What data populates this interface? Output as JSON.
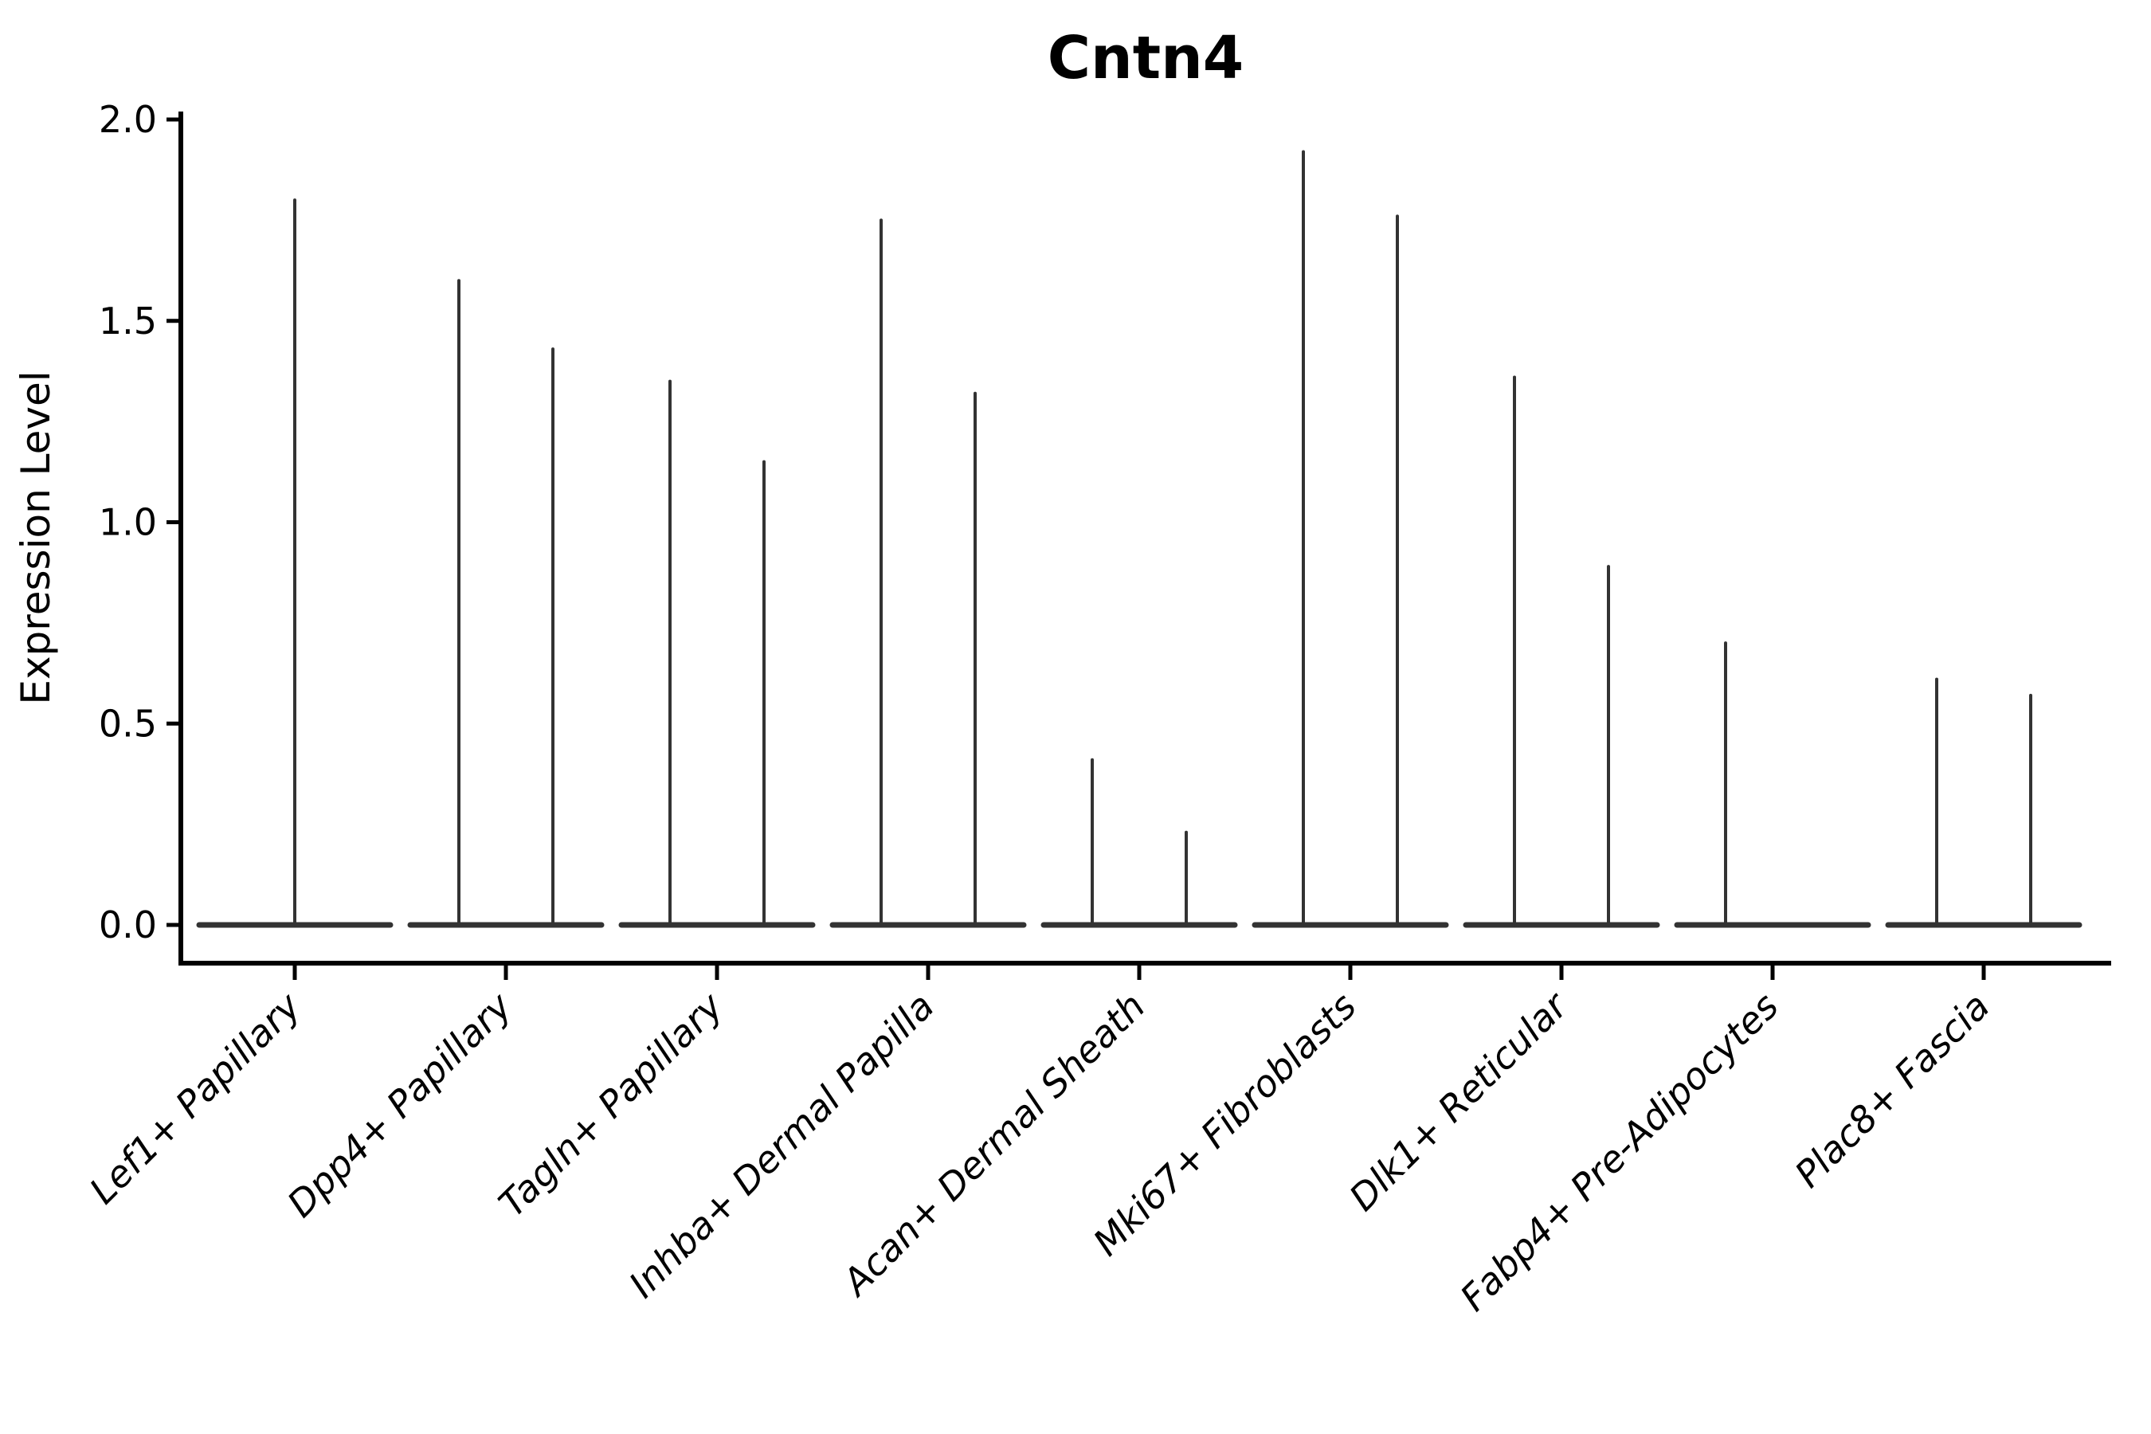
{
  "chart_data": {
    "type": "violin",
    "title": "Cntn4",
    "ylabel": "Expression Level",
    "xlabel": "",
    "ylim": [
      0.0,
      2.0
    ],
    "yticks": [
      0.0,
      0.5,
      1.0,
      1.5,
      2.0
    ],
    "ytick_labels": [
      "0.0",
      "0.5",
      "1.0",
      "1.5",
      "2.0"
    ],
    "grid": false,
    "legend": false,
    "x_labels_rotated_degrees": 45,
    "categories": [
      "Lef1+ Papillary",
      "Dpp4+ Papillary",
      "Tagln+ Papillary",
      "Inhba+ Dermal Papilla",
      "Acan+ Dermal Sheath",
      "Mki67+ Fibroblasts",
      "Dlk1+ Reticular",
      "Fabp4+ Pre-Adipocytes",
      "Plac8+ Fascia"
    ],
    "series": [
      {
        "category": "Lef1+ Papillary",
        "violins": [
          {
            "position": "center",
            "max_expression": 1.8
          }
        ]
      },
      {
        "category": "Dpp4+ Papillary",
        "violins": [
          {
            "position": "left",
            "max_expression": 1.6
          },
          {
            "position": "right",
            "max_expression": 1.43
          }
        ]
      },
      {
        "category": "Tagln+ Papillary",
        "violins": [
          {
            "position": "left",
            "max_expression": 1.35
          },
          {
            "position": "right",
            "max_expression": 1.15
          }
        ]
      },
      {
        "category": "Inhba+ Dermal Papilla",
        "violins": [
          {
            "position": "left",
            "max_expression": 1.75
          },
          {
            "position": "right",
            "max_expression": 1.32
          }
        ]
      },
      {
        "category": "Acan+ Dermal Sheath",
        "violins": [
          {
            "position": "left",
            "max_expression": 0.41
          },
          {
            "position": "right",
            "max_expression": 0.23
          }
        ]
      },
      {
        "category": "Mki67+ Fibroblasts",
        "violins": [
          {
            "position": "left",
            "max_expression": 1.92
          },
          {
            "position": "right",
            "max_expression": 1.76
          }
        ]
      },
      {
        "category": "Dlk1+ Reticular",
        "violins": [
          {
            "position": "left",
            "max_expression": 1.36
          },
          {
            "position": "right",
            "max_expression": 0.89
          }
        ]
      },
      {
        "category": "Fabp4+ Pre-Adipocytes",
        "violins": [
          {
            "position": "left",
            "max_expression": 0.7
          },
          {
            "position": "right",
            "max_expression": 0.0
          }
        ]
      },
      {
        "category": "Plac8+ Fascia",
        "violins": [
          {
            "position": "left",
            "max_expression": 0.61
          },
          {
            "position": "right",
            "max_expression": 0.57
          }
        ]
      }
    ],
    "colors": {
      "violin": "#333333",
      "axis": "#000000",
      "text": "#000000",
      "background": "#ffffff"
    }
  }
}
